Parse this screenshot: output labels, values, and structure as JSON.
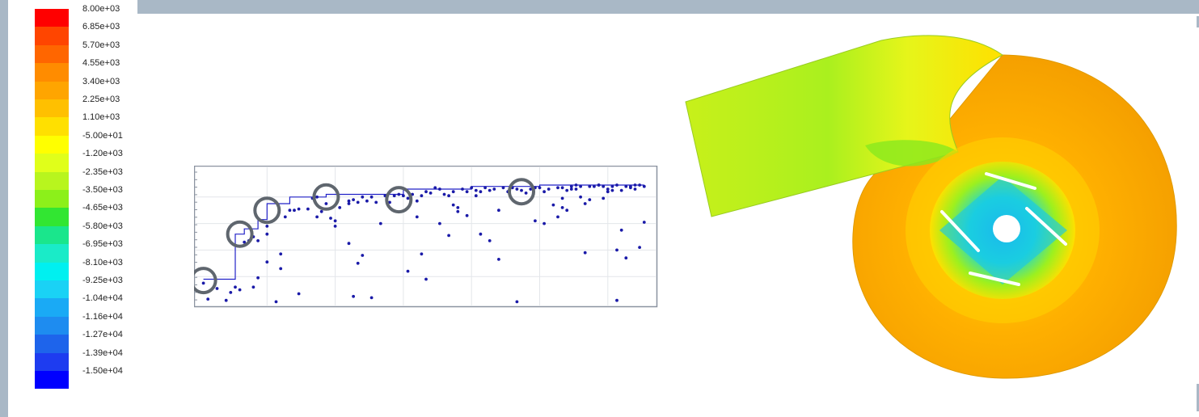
{
  "colorbar": {
    "labels": [
      "8.00e+03",
      "6.85e+03",
      "5.70e+03",
      "4.55e+03",
      "3.40e+03",
      "2.25e+03",
      "1.10e+03",
      "-5.00e+01",
      "-1.20e+03",
      "-2.35e+03",
      "-3.50e+03",
      "-4.65e+03",
      "-5.80e+03",
      "-6.95e+03",
      "-8.10e+03",
      "-9.25e+03",
      "-1.04e+04",
      "-1.16e+04",
      "-1.27e+04",
      "-1.39e+04",
      "-1.50e+04"
    ],
    "colors": [
      "#ff0000",
      "#ff4500",
      "#ff6600",
      "#ff8c00",
      "#ffa500",
      "#ffc000",
      "#ffe000",
      "#ffff00",
      "#e0ff1a",
      "#b8f51e",
      "#8cf01a",
      "#32e632",
      "#1ae68c",
      "#1aebc8",
      "#00f0f0",
      "#1ad2f5",
      "#1aaaf5",
      "#1e8cf0",
      "#1e64eb",
      "#1e3cf0",
      "#0000ff"
    ]
  },
  "chart_data": {
    "type": "scatter",
    "title": "",
    "xlabel": "",
    "ylabel": "",
    "xlim": [
      0,
      100
    ],
    "ylim": [
      0,
      100
    ],
    "grid": true,
    "series_color": "#1a1aa8",
    "highlight_color": "#5f666e",
    "points": [
      [
        1,
        15
      ],
      [
        2,
        3
      ],
      [
        4,
        11
      ],
      [
        6,
        2
      ],
      [
        7,
        8
      ],
      [
        8,
        12
      ],
      [
        9,
        10
      ],
      [
        10,
        46
      ],
      [
        11,
        47
      ],
      [
        12,
        50
      ],
      [
        13,
        47
      ],
      [
        13,
        19
      ],
      [
        12,
        12
      ],
      [
        15,
        52
      ],
      [
        15,
        58
      ],
      [
        17,
        1
      ],
      [
        18,
        26
      ],
      [
        18,
        37
      ],
      [
        19,
        65
      ],
      [
        20,
        70
      ],
      [
        21,
        70
      ],
      [
        22,
        71
      ],
      [
        22,
        7
      ],
      [
        24,
        71
      ],
      [
        25,
        79
      ],
      [
        26,
        80
      ],
      [
        26,
        65
      ],
      [
        27,
        69
      ],
      [
        28,
        75
      ],
      [
        29,
        64
      ],
      [
        30,
        62
      ],
      [
        30,
        58
      ],
      [
        31,
        72
      ],
      [
        33,
        75
      ],
      [
        33,
        77
      ],
      [
        34,
        78
      ],
      [
        35,
        76
      ],
      [
        36,
        80
      ],
      [
        37,
        77
      ],
      [
        38,
        80
      ],
      [
        39,
        76
      ],
      [
        40,
        60
      ],
      [
        41,
        81
      ],
      [
        42,
        76
      ],
      [
        43,
        81
      ],
      [
        44,
        82
      ],
      [
        45,
        81
      ],
      [
        46,
        79
      ],
      [
        47,
        82
      ],
      [
        48,
        77
      ],
      [
        49,
        81
      ],
      [
        50,
        84
      ],
      [
        51,
        83
      ],
      [
        52,
        87
      ],
      [
        53,
        86
      ],
      [
        54,
        82
      ],
      [
        55,
        81
      ],
      [
        56,
        84
      ],
      [
        57,
        69
      ],
      [
        58,
        86
      ],
      [
        59,
        84
      ],
      [
        60,
        87
      ],
      [
        61,
        85
      ],
      [
        62,
        84
      ],
      [
        63,
        87
      ],
      [
        64,
        85
      ],
      [
        65,
        86
      ],
      [
        66,
        70
      ],
      [
        66,
        33
      ],
      [
        67,
        87
      ],
      [
        68,
        84
      ],
      [
        69,
        87
      ],
      [
        70,
        86
      ],
      [
        71,
        85
      ],
      [
        72,
        83
      ],
      [
        73,
        86
      ],
      [
        74,
        87
      ],
      [
        75,
        87
      ],
      [
        76,
        84
      ],
      [
        77,
        86
      ],
      [
        78,
        74
      ],
      [
        79,
        87
      ],
      [
        80,
        87
      ],
      [
        81,
        85
      ],
      [
        82,
        86
      ],
      [
        83,
        89
      ],
      [
        84,
        80
      ],
      [
        85,
        75
      ],
      [
        86,
        88
      ],
      [
        87,
        88
      ],
      [
        88,
        89
      ],
      [
        89,
        88
      ],
      [
        90,
        86
      ],
      [
        91,
        88
      ],
      [
        92,
        89
      ],
      [
        93,
        85
      ],
      [
        94,
        88
      ],
      [
        95,
        87
      ],
      [
        96,
        86
      ],
      [
        97,
        89
      ],
      [
        98,
        88
      ],
      [
        33,
        45
      ],
      [
        36,
        36
      ],
      [
        38,
        4
      ],
      [
        46,
        24
      ],
      [
        48,
        65
      ],
      [
        49,
        37
      ],
      [
        50,
        18
      ],
      [
        53,
        60
      ],
      [
        55,
        51
      ],
      [
        56,
        74
      ],
      [
        57,
        72
      ],
      [
        59,
        66
      ],
      [
        61,
        81
      ],
      [
        62,
        52
      ],
      [
        64,
        47
      ],
      [
        70,
        1
      ],
      [
        74,
        62
      ],
      [
        76,
        60
      ],
      [
        80,
        79
      ],
      [
        85,
        38
      ],
      [
        86,
        78
      ],
      [
        88,
        89
      ],
      [
        90,
        84
      ],
      [
        92,
        2
      ],
      [
        92,
        40
      ],
      [
        93,
        55
      ],
      [
        94,
        34
      ],
      [
        95,
        88
      ],
      [
        80,
        72
      ],
      [
        81,
        70
      ],
      [
        79,
        65
      ],
      [
        82,
        88
      ],
      [
        83,
        86
      ],
      [
        84,
        88
      ],
      [
        89,
        79
      ],
      [
        91,
        85
      ],
      [
        96,
        89
      ],
      [
        97,
        42
      ],
      [
        98,
        61
      ],
      [
        35,
        30
      ],
      [
        34,
        5
      ],
      [
        15,
        31
      ]
    ],
    "step_line": [
      [
        1,
        18
      ],
      [
        8,
        18
      ],
      [
        8,
        52
      ],
      [
        10,
        52
      ],
      [
        10,
        56
      ],
      [
        13,
        56
      ],
      [
        13,
        63
      ],
      [
        15,
        63
      ],
      [
        15,
        75
      ],
      [
        20,
        75
      ],
      [
        20,
        80
      ],
      [
        28,
        80
      ],
      [
        28,
        82
      ],
      [
        45,
        82
      ],
      [
        45,
        86
      ],
      [
        60,
        86
      ],
      [
        60,
        88
      ],
      [
        75,
        88
      ],
      [
        75,
        89
      ],
      [
        98,
        89
      ]
    ],
    "highlighted_points": [
      [
        1,
        17
      ],
      [
        9,
        52
      ],
      [
        15,
        70
      ],
      [
        28,
        80
      ],
      [
        44,
        78
      ],
      [
        71,
        84
      ]
    ]
  }
}
